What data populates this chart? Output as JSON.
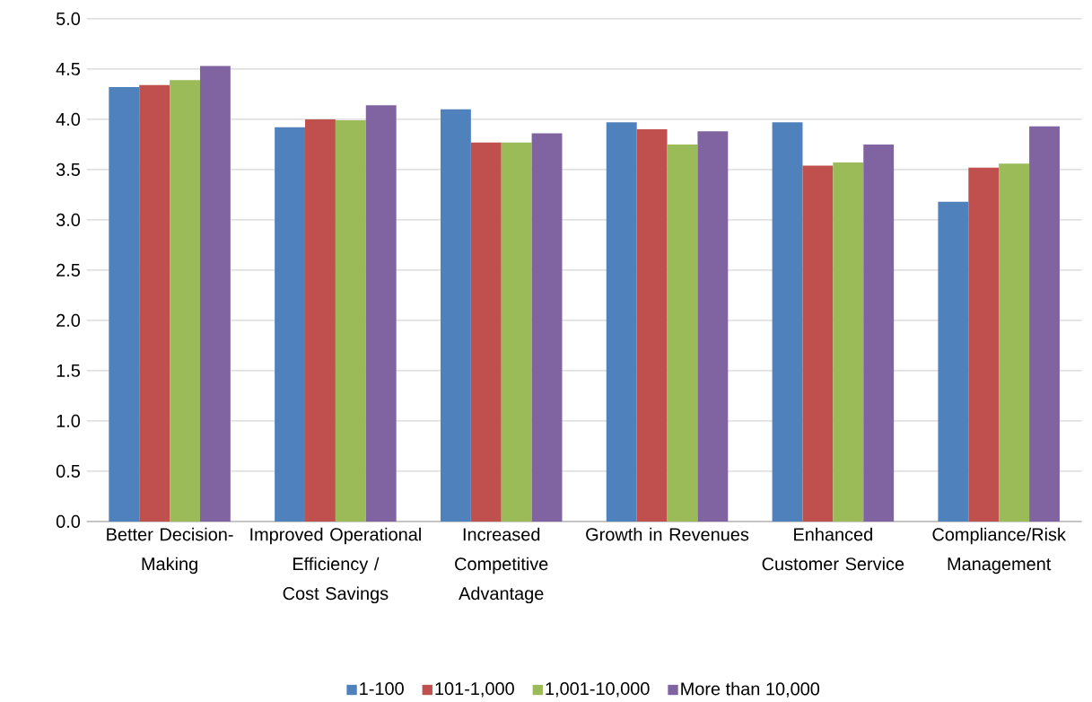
{
  "chart_data": {
    "type": "bar",
    "categories": [
      "Better Decision-Making",
      "Improved Operational Efficiency / Cost Savings",
      "Increased Competitive Advantage",
      "Growth in Revenues",
      "Enhanced Customer Service",
      "Compliance/Risk Management"
    ],
    "series": [
      {
        "name": "1-100",
        "color": "#4f81bd",
        "values": [
          4.32,
          3.92,
          4.1,
          3.97,
          3.97,
          3.18
        ]
      },
      {
        "name": "101-1,000",
        "color": "#c0504d",
        "values": [
          4.34,
          4.0,
          3.77,
          3.9,
          3.54,
          3.52
        ]
      },
      {
        "name": "1,001-10,000",
        "color": "#9bbb59",
        "values": [
          4.39,
          3.99,
          3.77,
          3.75,
          3.57,
          3.56
        ]
      },
      {
        "name": "More than 10,000",
        "color": "#8064a2",
        "values": [
          4.53,
          4.14,
          3.86,
          3.88,
          3.75,
          3.93
        ]
      }
    ],
    "ylim": [
      0,
      5
    ],
    "yticks": [
      {
        "value": 0,
        "label": "0.0"
      },
      {
        "value": 0.5,
        "label": "0.5"
      },
      {
        "value": 1,
        "label": "1.0"
      },
      {
        "value": 1.5,
        "label": "1.5"
      },
      {
        "value": 2,
        "label": "2.0"
      },
      {
        "value": 2.5,
        "label": "2.5"
      },
      {
        "value": 3,
        "label": "3.0"
      },
      {
        "value": 3.5,
        "label": "3.5"
      },
      {
        "value": 4,
        "label": "4.0"
      },
      {
        "value": 4.5,
        "label": "4.5"
      },
      {
        "value": 5,
        "label": "5.0"
      }
    ],
    "grid": "y",
    "legend": "bottom"
  }
}
